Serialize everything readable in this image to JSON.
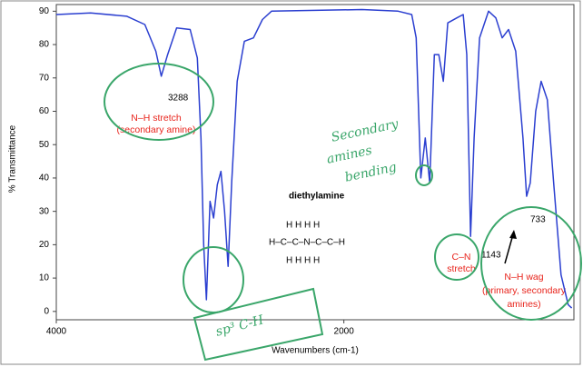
{
  "chart_data": {
    "type": "line",
    "x_label": "Wavenumbers (cm-1)",
    "y_label": "% Transmittance",
    "xlim": [
      4000,
      400
    ],
    "ylim": [
      -2.5,
      92
    ],
    "xticks": [
      4000,
      2000
    ],
    "yticks": [
      0,
      10,
      20,
      30,
      40,
      50,
      60,
      70,
      80,
      90
    ],
    "series": [
      {
        "name": "diethylamine",
        "color": "#2b3fd0",
        "x": [
          4000,
          3761,
          3509,
          3384,
          3308,
          3270,
          3226,
          3163,
          3069,
          3019,
          2994,
          2975,
          2956,
          2931,
          2906,
          2880,
          2855,
          2830,
          2805,
          2780,
          2742,
          2692,
          2629,
          2566,
          2503,
          1874,
          1623,
          1528,
          1497,
          1465,
          1434,
          1403,
          1371,
          1340,
          1308,
          1277,
          1214,
          1170,
          1145,
          1119,
          1094,
          1056,
          994,
          943,
          899,
          855,
          805,
          754,
          729,
          704,
          666,
          628,
          585,
          541,
          490,
          440,
          415
        ],
        "values": [
          89,
          89.5,
          88.5,
          86,
          78,
          70.5,
          77,
          85,
          84.5,
          76,
          52,
          20,
          3.5,
          33,
          28,
          38,
          42,
          30,
          13.5,
          39,
          69,
          81,
          82,
          87.5,
          90,
          90.5,
          90,
          89,
          82,
          40,
          52,
          38.5,
          77,
          77,
          69,
          86.5,
          88,
          89,
          77,
          22.5,
          52,
          82,
          90,
          88,
          82,
          84.5,
          78,
          52,
          34.5,
          38.5,
          60,
          69,
          63.5,
          38.5,
          11,
          2,
          1
        ]
      }
    ],
    "annotations": {
      "nh_value": "3288",
      "nh_line1": "N–H stretch",
      "nh_line2": "(secondary amine)",
      "cn_value": "1143",
      "cn_line1": "C–N",
      "cn_line2": "stretch",
      "wag_value": "733",
      "wag_line1": "N–H wag",
      "wag_line2": "(primary, secondary",
      "wag_line3": "amines)",
      "hand1": "Secondary",
      "hand2": "amines",
      "hand3": "bending",
      "hand4": "sp³ C-H"
    },
    "structure": {
      "top": "H    H         H    H",
      "middle": "H–C–C–N–C–C–H",
      "bottom": "H    H         H    H"
    }
  }
}
